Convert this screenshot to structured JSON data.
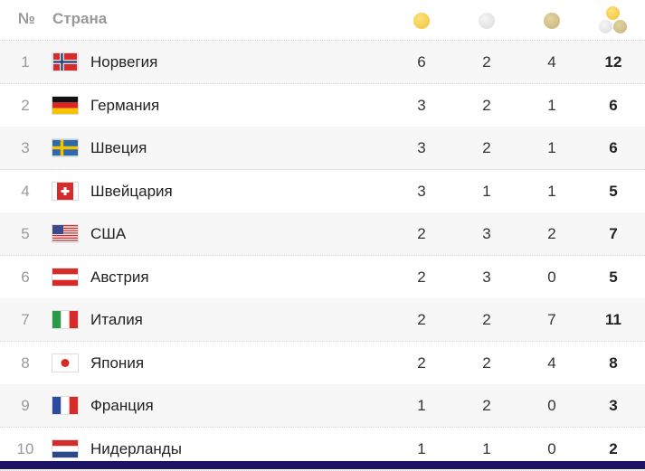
{
  "header": {
    "num": "№",
    "country": "Страна",
    "medal_icons": [
      "gold-medal",
      "silver-medal",
      "bronze-medal",
      "total-medals"
    ]
  },
  "colors": {
    "gold": "#f2c232",
    "silver": "#d9d9d9",
    "bronze": "#c7b27a",
    "bottom_bar": "#1e1466"
  },
  "rows": [
    {
      "rank": "1",
      "country": "Норвегия",
      "flag": "norway",
      "gold": "6",
      "silver": "2",
      "bronze": "4",
      "total": "12"
    },
    {
      "rank": "2",
      "country": "Германия",
      "flag": "germany",
      "gold": "3",
      "silver": "2",
      "bronze": "1",
      "total": "6"
    },
    {
      "rank": "3",
      "country": "Швеция",
      "flag": "sweden",
      "gold": "3",
      "silver": "2",
      "bronze": "1",
      "total": "6"
    },
    {
      "rank": "4",
      "country": "Швейцария",
      "flag": "switzerland",
      "gold": "3",
      "silver": "1",
      "bronze": "1",
      "total": "5"
    },
    {
      "rank": "5",
      "country": "США",
      "flag": "usa",
      "gold": "2",
      "silver": "3",
      "bronze": "2",
      "total": "7"
    },
    {
      "rank": "6",
      "country": "Австрия",
      "flag": "austria",
      "gold": "2",
      "silver": "3",
      "bronze": "0",
      "total": "5"
    },
    {
      "rank": "7",
      "country": "Италия",
      "flag": "italy",
      "gold": "2",
      "silver": "2",
      "bronze": "7",
      "total": "11"
    },
    {
      "rank": "8",
      "country": "Япония",
      "flag": "japan",
      "gold": "2",
      "silver": "2",
      "bronze": "4",
      "total": "8"
    },
    {
      "rank": "9",
      "country": "Франция",
      "flag": "france",
      "gold": "1",
      "silver": "2",
      "bronze": "0",
      "total": "3"
    },
    {
      "rank": "10",
      "country": "Нидерланды",
      "flag": "netherlands",
      "gold": "1",
      "silver": "1",
      "bronze": "0",
      "total": "2"
    }
  ]
}
